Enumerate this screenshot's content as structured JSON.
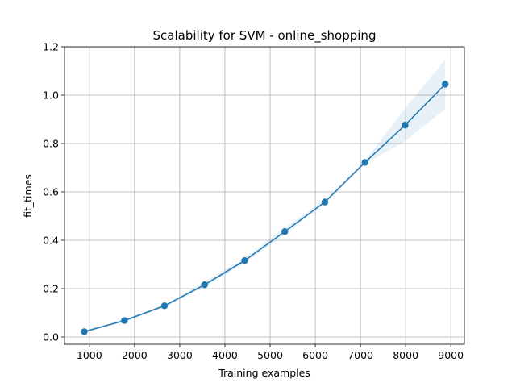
{
  "chart_data": {
    "type": "line",
    "title": "Scalability for SVM - online_shopping",
    "xlabel": "Training examples",
    "ylabel": "fit_times",
    "xlim": [
      450,
      9300
    ],
    "ylim": [
      -0.03,
      1.2
    ],
    "x_ticks": [
      1000,
      2000,
      3000,
      4000,
      5000,
      6000,
      7000,
      8000,
      9000
    ],
    "x_tick_labels": [
      "1000",
      "2000",
      "3000",
      "4000",
      "5000",
      "6000",
      "7000",
      "8000",
      "9000"
    ],
    "y_ticks": [
      0.0,
      0.2,
      0.4,
      0.6,
      0.8,
      1.0,
      1.2
    ],
    "y_tick_labels": [
      "0.0",
      "0.2",
      "0.4",
      "0.6",
      "0.8",
      "1.0",
      "1.2"
    ],
    "grid": true,
    "series": [
      {
        "x": [
          887,
          1775,
          2662,
          3550,
          4437,
          5325,
          6212,
          7100,
          7987,
          8875
        ],
        "values": [
          0.022,
          0.068,
          0.129,
          0.216,
          0.316,
          0.436,
          0.558,
          0.722,
          0.876,
          1.045
        ],
        "band_lower": [
          0.017,
          0.063,
          0.123,
          0.206,
          0.306,
          0.424,
          0.55,
          0.715,
          0.81,
          0.943
        ],
        "band_upper": [
          0.027,
          0.073,
          0.135,
          0.228,
          0.328,
          0.452,
          0.568,
          0.73,
          0.945,
          1.147
        ]
      }
    ],
    "colors": {
      "line": "#1f77b4",
      "band": "#1f77b4",
      "grid": "#b0b0b0",
      "axes": "#000000"
    }
  }
}
